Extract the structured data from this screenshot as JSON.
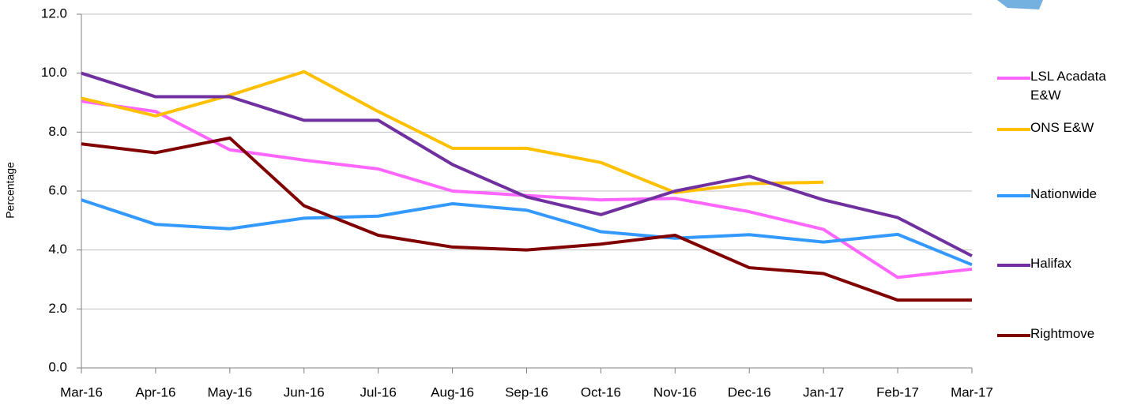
{
  "chart_data": {
    "type": "line",
    "y_label": "Percentage",
    "categories": [
      "Mar-16",
      "Apr-16",
      "May-16",
      "Jun-16",
      "Jul-16",
      "Aug-16",
      "Sep-16",
      "Oct-16",
      "Nov-16",
      "Dec-16",
      "Jan-17",
      "Feb-17",
      "Mar-17"
    ],
    "series": [
      {
        "name": "LSL Acadata E&W",
        "color": "#ff66ff",
        "values": [
          9.05,
          8.7,
          7.4,
          7.05,
          6.75,
          6.0,
          5.85,
          5.7,
          5.75,
          5.3,
          4.7,
          3.07,
          3.35
        ]
      },
      {
        "name": "ONS E&W",
        "color": "#ffc000",
        "values": [
          9.15,
          8.55,
          9.25,
          10.05,
          8.7,
          7.45,
          7.45,
          6.97,
          5.95,
          6.25,
          6.3,
          null,
          null
        ]
      },
      {
        "name": "Nationwide",
        "color": "#3399ff",
        "values": [
          5.7,
          4.87,
          4.72,
          5.08,
          5.15,
          5.57,
          5.35,
          4.62,
          4.4,
          4.52,
          4.27,
          4.53,
          3.5
        ]
      },
      {
        "name": "Halifax",
        "color": "#7030a0",
        "values": [
          10.0,
          9.2,
          9.2,
          8.4,
          8.4,
          6.9,
          5.8,
          5.2,
          6.0,
          6.5,
          5.7,
          5.1,
          3.8
        ]
      },
      {
        "name": "Rightmove",
        "color": "#800000",
        "values": [
          7.6,
          7.3,
          7.8,
          5.5,
          4.5,
          4.1,
          4.0,
          4.2,
          4.5,
          3.4,
          3.2,
          2.3,
          2.3
        ]
      }
    ],
    "ylim": [
      0,
      12
    ],
    "yticks": [
      {
        "value": 0,
        "label": "0.0"
      },
      {
        "value": 2,
        "label": "2.0"
      },
      {
        "value": 4,
        "label": "4.0"
      },
      {
        "value": 6,
        "label": "6.0"
      },
      {
        "value": 8,
        "label": "8.0"
      },
      {
        "value": 10,
        "label": "10.0"
      },
      {
        "value": 12,
        "label": "12.0"
      }
    ],
    "grid": true,
    "legend": "right"
  }
}
